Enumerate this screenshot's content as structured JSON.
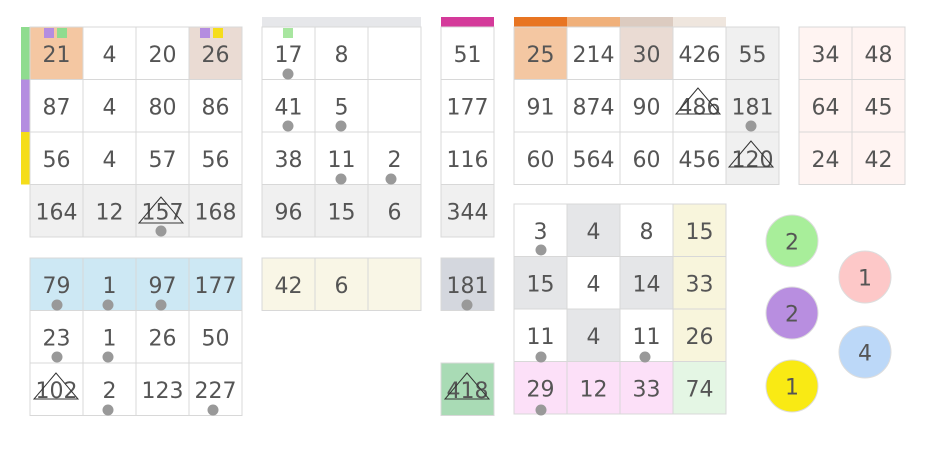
{
  "grids": [
    [
      [
        21,
        4,
        20,
        26
      ],
      [
        87,
        4,
        80,
        86
      ],
      [
        56,
        4,
        57,
        56
      ],
      [
        164,
        12,
        157,
        168
      ]
    ],
    [
      [
        17,
        8,
        null
      ],
      [
        41,
        5,
        null
      ],
      [
        38,
        11,
        2
      ],
      [
        96,
        15,
        6
      ]
    ],
    [
      [
        51
      ],
      [
        177
      ],
      [
        116
      ],
      [
        344
      ]
    ],
    [
      [
        25,
        214,
        30,
        426,
        55
      ],
      [
        91,
        874,
        90,
        486,
        181
      ],
      [
        60,
        564,
        60,
        456,
        120
      ]
    ],
    [
      [
        34,
        48
      ],
      [
        64,
        45
      ],
      [
        24,
        42
      ]
    ],
    [
      [
        79,
        1,
        97,
        177
      ],
      [
        23,
        1,
        26,
        50
      ],
      [
        102,
        2,
        123,
        227
      ]
    ],
    [
      [
        42,
        6,
        null
      ]
    ],
    [
      [
        181
      ]
    ],
    [
      [
        418
      ]
    ],
    [
      [
        3,
        4,
        8,
        15
      ],
      [
        15,
        4,
        14,
        33
      ],
      [
        11,
        4,
        11,
        26
      ],
      [
        29,
        12,
        33,
        74
      ]
    ]
  ],
  "circles": [
    2,
    2,
    1,
    1,
    4
  ]
}
